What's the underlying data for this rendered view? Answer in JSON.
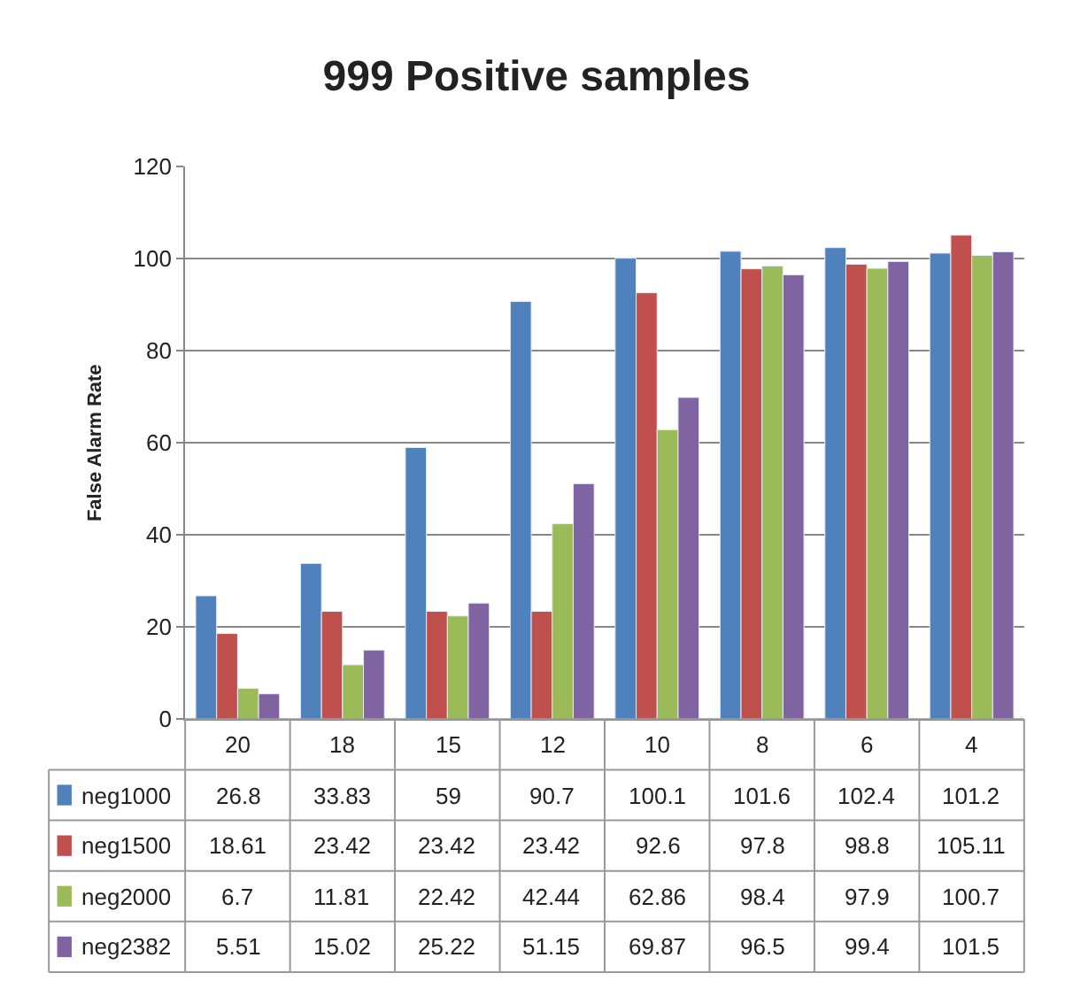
{
  "chart_data": {
    "type": "bar",
    "title": "999 Positive samples",
    "ylabel": "False Alarm Rate",
    "categories": [
      "20",
      "18",
      "15",
      "12",
      "10",
      "8",
      "6",
      "4"
    ],
    "series": [
      {
        "name": "neg1000",
        "color": "#4f81bd",
        "values": [
          26.8,
          33.83,
          59,
          90.7,
          100.1,
          101.6,
          102.4,
          101.2
        ]
      },
      {
        "name": "neg1500",
        "color": "#c0504d",
        "values": [
          18.61,
          23.42,
          23.42,
          23.42,
          92.6,
          97.8,
          98.8,
          105.11
        ]
      },
      {
        "name": "neg2000",
        "color": "#9bbb59",
        "values": [
          6.7,
          11.81,
          22.42,
          42.44,
          62.86,
          98.4,
          97.9,
          100.7
        ]
      },
      {
        "name": "neg2382",
        "color": "#8064a2",
        "values": [
          5.51,
          15.02,
          25.22,
          51.15,
          69.87,
          96.5,
          99.4,
          101.5
        ]
      }
    ],
    "ylim": [
      0,
      120
    ],
    "yticks": [
      0,
      20,
      40,
      60,
      80,
      100,
      120
    ],
    "grid": "y",
    "legend": "bottom left",
    "data_labels": true
  }
}
